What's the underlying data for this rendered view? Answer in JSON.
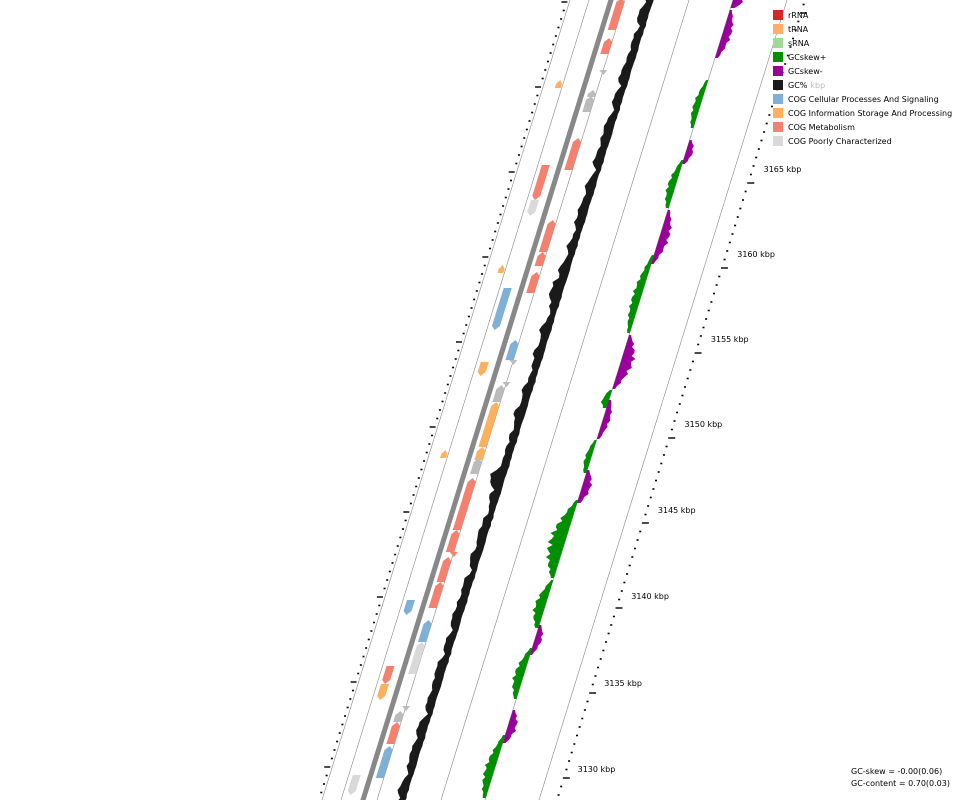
{
  "legend": [
    {
      "label": "rRNA",
      "color": "#d62728"
    },
    {
      "label": "tRNA",
      "color": "#fdae6b"
    },
    {
      "label": "sRNA",
      "color": "#a1d99b"
    },
    {
      "label": "GCskew+",
      "color": "#008f00"
    },
    {
      "label": "GCskew-",
      "color": "#990099"
    },
    {
      "label": "GC%",
      "color": "#1a1a1a",
      "suffix": "kbp"
    },
    {
      "label": "COG Cellular Processes And Signaling",
      "color": "#7fb0d6"
    },
    {
      "label": "COG Information Storage And Processing",
      "color": "#fbb15e"
    },
    {
      "label": "COG Metabolism",
      "color": "#f4806f"
    },
    {
      "label": "COG Poorly Characterized",
      "color": "#d9d9d9"
    }
  ],
  "scale_labels": [
    "3130 kbp",
    "3135 kbp",
    "3140 kbp",
    "3145 kbp",
    "3150 kbp",
    "3155 kbp",
    "3160 kbp",
    "3165 kbp"
  ],
  "stats": {
    "gc_skew": "GC-skew = -0.00(0.06)",
    "gc_content": "GC-content = 0.70(0.03)"
  },
  "colors": {
    "backbone": "#888888",
    "guide_line": "#888888",
    "gc_content": "#1a1a1a",
    "skew_pos": "#008f00",
    "skew_neg": "#990099",
    "rna_marker": "#bbbbbb",
    "cog_cellular": "#7fb0d6",
    "cog_information": "#fbb15e",
    "cog_metabolism": "#f4806f",
    "cog_poor": "#d9d9d9"
  }
}
